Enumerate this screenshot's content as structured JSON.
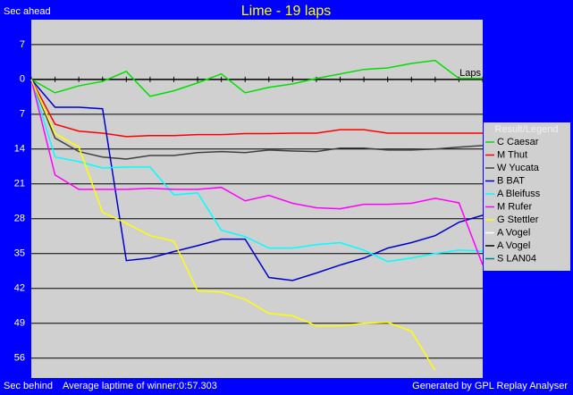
{
  "chart_data": {
    "type": "line",
    "title": "Lime - 19 laps",
    "y_label_top": "Sec ahead",
    "y_label_bottom": "Sec behind",
    "footer": "Average laptime of winner:0:57.303",
    "credit": "Generated by GPL Replay Analyser",
    "x_label": "Laps",
    "legend_title": "Result/Legend",
    "x": [
      0,
      1,
      2,
      3,
      4,
      5,
      6,
      7,
      8,
      9,
      10,
      11,
      12,
      13,
      14,
      15,
      16,
      17,
      18,
      19
    ],
    "xlim": [
      0,
      19
    ],
    "ylim": [
      -12,
      60
    ],
    "y_inverted": true,
    "yticks": [
      {
        "value": -7,
        "label": "7"
      },
      0,
      7,
      14,
      21,
      28,
      35,
      42,
      49,
      56
    ],
    "grid": true,
    "legend": "right",
    "series": [
      {
        "name": "C Caesar",
        "color": "#00e000",
        "values": [
          0,
          2.7,
          1.3,
          0.4,
          -1.6,
          3.4,
          2.3,
          0.7,
          -1.1,
          2.7,
          1.6,
          0.9,
          -0.2,
          -1.1,
          -2.0,
          -2.3,
          -3.2,
          -3.8,
          -0.2,
          -0.2
        ]
      },
      {
        "name": "M Thut",
        "color": "#ff0000",
        "values": [
          0,
          9.0,
          10.4,
          10.8,
          11.5,
          11.3,
          11.3,
          11.1,
          11.1,
          10.9,
          10.9,
          10.8,
          10.8,
          10.1,
          10.1,
          10.8,
          10.8,
          10.8,
          10.8,
          10.8
        ]
      },
      {
        "name": "W Yucata",
        "color": "#404040",
        "values": [
          0,
          11.8,
          14.5,
          15.6,
          16.0,
          15.3,
          15.3,
          14.7,
          14.5,
          14.7,
          14.2,
          14.4,
          14.5,
          13.8,
          13.8,
          14.2,
          14.2,
          14.0,
          13.6,
          13.3
        ]
      },
      {
        "name": "B BAT",
        "color": "#0000cc",
        "values": [
          0,
          5.6,
          5.6,
          5.9,
          36.4,
          35.9,
          34.6,
          33.4,
          32.1,
          32.1,
          39.8,
          40.4,
          38.9,
          37.3,
          35.9,
          33.9,
          32.8,
          31.4,
          28.7,
          27.3
        ]
      },
      {
        "name": "A Bleifuss",
        "color": "#00ffff",
        "values": [
          0,
          15.6,
          16.5,
          17.8,
          17.6,
          17.6,
          23.2,
          22.8,
          30.3,
          31.6,
          33.9,
          33.9,
          33.2,
          32.8,
          34.3,
          36.6,
          35.9,
          35.0,
          34.3,
          34.5
        ]
      },
      {
        "name": "M Rufer",
        "color": "#ff00ff",
        "values": [
          0,
          19.2,
          22.1,
          22.1,
          22.1,
          21.9,
          22.1,
          22.1,
          21.7,
          24.4,
          23.3,
          24.9,
          25.8,
          26.0,
          25.1,
          25.1,
          24.9,
          23.9,
          24.8,
          37.3
        ]
      },
      {
        "name": "G Stettler",
        "color": "#ffff00",
        "values": [
          0,
          10.9,
          13.6,
          26.7,
          28.9,
          31.4,
          32.5,
          42.5,
          42.7,
          44.2,
          47.0,
          47.5,
          49.5,
          49.5,
          49.0,
          48.8,
          50.6,
          58.5,
          null,
          null
        ]
      },
      {
        "name": "A Vogel",
        "color": "#ffffff",
        "values": [
          null,
          null,
          null,
          null,
          null,
          null,
          null,
          null,
          null,
          null,
          null,
          null,
          null,
          null,
          null,
          null,
          null,
          null,
          null,
          null
        ]
      },
      {
        "name": "A Vogel",
        "color": "#000000",
        "values": [
          null,
          null,
          null,
          null,
          null,
          null,
          null,
          null,
          null,
          null,
          null,
          null,
          null,
          null,
          null,
          null,
          null,
          null,
          null,
          null
        ]
      },
      {
        "name": "S LAN04",
        "color": "#008080",
        "values": [
          null,
          null,
          null,
          null,
          null,
          null,
          null,
          null,
          null,
          null,
          null,
          null,
          null,
          null,
          null,
          null,
          null,
          null,
          null,
          null
        ]
      }
    ]
  }
}
